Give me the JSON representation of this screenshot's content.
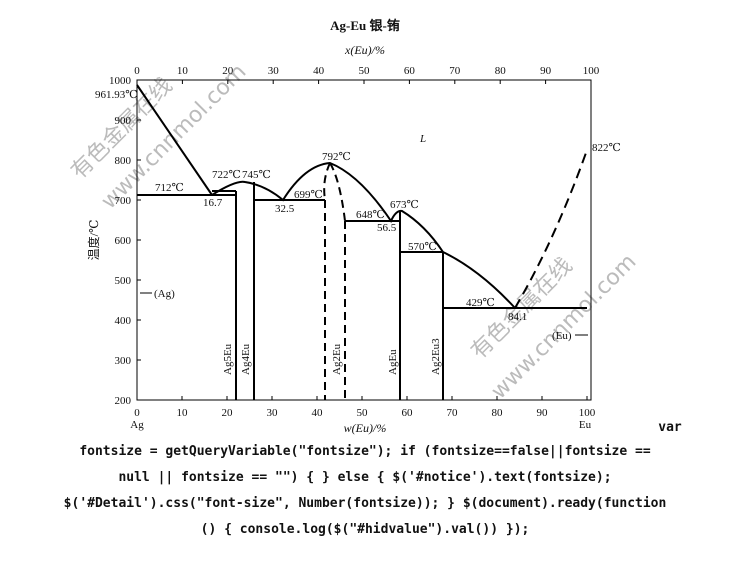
{
  "header": {
    "title": "Ag-Eu  银-铕"
  },
  "axes": {
    "top_label": "x(Eu)/%",
    "bottom_label": "w(Eu)/%",
    "y_label": "温度/℃",
    "top_ticks": [
      0,
      10,
      20,
      30,
      40,
      50,
      60,
      70,
      80,
      90,
      100
    ],
    "bottom_ticks": [
      0,
      10,
      20,
      30,
      40,
      50,
      60,
      70,
      80,
      90,
      100
    ],
    "y_ticks": [
      200,
      300,
      400,
      500,
      600,
      700,
      800,
      900,
      1000
    ],
    "left_end": "Ag",
    "right_end": "Eu"
  },
  "annotations": [
    "961.93℃",
    "712℃",
    "722℃",
    "745℃",
    "16.7",
    "32.5",
    "699℃",
    "792℃",
    "648℃",
    "56.5",
    "673℃",
    "570℃",
    "429℃",
    "84.1",
    "822℃",
    "L",
    "(Ag)",
    "(Eu)"
  ],
  "phases": [
    "Ag5Eu",
    "Ag4Eu",
    "Ag2Eu",
    "AgEu",
    "Ag2Eu3"
  ],
  "watermarks": [
    "有色金属在线",
    "www.cnnmol.com",
    "有色金属在线",
    "www.cnnmol.com"
  ],
  "code": [
    "var",
    "fontsize = getQueryVariable(\"fontsize\"); if (fontsize==false||fontsize ==",
    "null || fontsize == \"\") { } else { $('#notice').text(fontsize);",
    "$('#Detail').css(\"font-size\", Number(fontsize)); } $(document).ready(function",
    "() { console.log($(\"#hidvalue\").val()) });"
  ]
}
